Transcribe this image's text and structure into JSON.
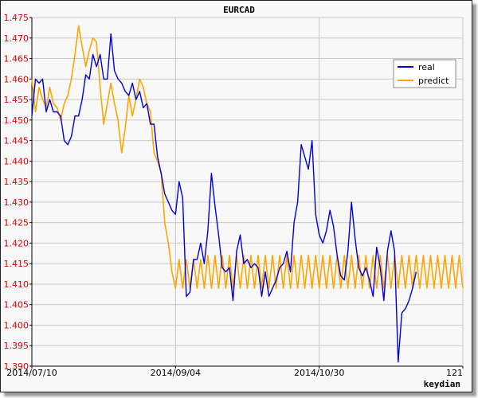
{
  "chart_data": {
    "type": "line",
    "title": "EURCAD",
    "credit": "keydian",
    "ylim": [
      1.39,
      1.475
    ],
    "y_ticks": [
      "1.390",
      "1.395",
      "1.400",
      "1.405",
      "1.410",
      "1.415",
      "1.420",
      "1.425",
      "1.430",
      "1.435",
      "1.440",
      "1.445",
      "1.450",
      "1.455",
      "1.460",
      "1.465",
      "1.470",
      "1.475"
    ],
    "x_ticks": [
      {
        "index": 0,
        "label": "2014/07/10"
      },
      {
        "index": 40,
        "label": "2014/09/04"
      },
      {
        "index": 80,
        "label": "2014/10/30"
      },
      {
        "index": 120,
        "label": "121"
      }
    ],
    "xlim": [
      0,
      120
    ],
    "grid": true,
    "legend_position": "top-right",
    "series": [
      {
        "name": "real",
        "color": "#0000dd",
        "values": [
          1.451,
          1.46,
          1.459,
          1.46,
          1.452,
          1.455,
          1.452,
          1.452,
          1.451,
          1.445,
          1.444,
          1.446,
          1.451,
          1.451,
          1.455,
          1.461,
          1.46,
          1.466,
          1.463,
          1.466,
          1.46,
          1.46,
          1.471,
          1.462,
          1.46,
          1.459,
          1.457,
          1.456,
          1.459,
          1.455,
          1.457,
          1.453,
          1.454,
          1.449,
          1.449,
          1.441,
          1.437,
          1.432,
          1.43,
          1.428,
          1.427,
          1.435,
          1.431,
          1.407,
          1.408,
          1.416,
          1.416,
          1.42,
          1.415,
          1.423,
          1.437,
          1.429,
          1.422,
          1.414,
          1.413,
          1.414,
          1.406,
          1.418,
          1.422,
          1.415,
          1.416,
          1.414,
          1.415,
          1.414,
          1.407,
          1.413,
          1.407,
          1.409,
          1.411,
          1.414,
          1.415,
          1.418,
          1.413,
          1.425,
          1.43,
          1.444,
          1.441,
          1.438,
          1.445,
          1.427,
          1.422,
          1.42,
          1.423,
          1.428,
          1.424,
          1.417,
          1.412,
          1.411,
          1.418,
          1.43,
          1.421,
          1.414,
          1.412,
          1.414,
          1.411,
          1.407,
          1.419,
          1.414,
          1.406,
          1.418,
          1.423,
          1.418,
          1.391,
          1.403,
          1.404,
          1.406,
          1.409,
          1.413
        ]
      },
      {
        "name": "predict",
        "color": "#ffa500",
        "values": [
          1.46,
          1.452,
          1.458,
          1.455,
          1.453,
          1.458,
          1.454,
          1.453,
          1.45,
          1.454,
          1.456,
          1.46,
          1.466,
          1.473,
          1.468,
          1.463,
          1.467,
          1.47,
          1.469,
          1.458,
          1.449,
          1.454,
          1.459,
          1.454,
          1.45,
          1.442,
          1.448,
          1.456,
          1.451,
          1.455,
          1.46,
          1.458,
          1.454,
          1.452,
          1.442,
          1.44,
          1.437,
          1.425,
          1.42,
          1.413,
          1.409,
          1.416,
          1.409,
          1.416,
          1.409,
          1.416,
          1.409,
          1.416,
          1.409,
          1.417,
          1.409,
          1.417,
          1.409,
          1.417,
          1.409,
          1.417,
          1.409,
          1.417,
          1.409,
          1.417,
          1.409,
          1.417,
          1.409,
          1.417,
          1.409,
          1.417,
          1.409,
          1.417,
          1.409,
          1.417,
          1.409,
          1.417,
          1.409,
          1.417,
          1.409,
          1.417,
          1.409,
          1.417,
          1.409,
          1.417,
          1.409,
          1.417,
          1.409,
          1.417,
          1.409,
          1.417,
          1.409,
          1.417,
          1.409,
          1.417,
          1.409,
          1.417,
          1.409,
          1.417,
          1.409,
          1.417,
          1.409,
          1.417,
          1.409,
          1.417,
          1.409,
          1.417,
          1.409,
          1.417,
          1.409,
          1.417,
          1.409,
          1.417,
          1.409,
          1.417,
          1.409,
          1.417,
          1.409,
          1.417,
          1.409,
          1.417,
          1.409,
          1.417,
          1.409,
          1.417,
          1.409
        ]
      }
    ],
    "colors": {
      "grid": "#c8c8c8",
      "axis": "#000000",
      "ytick_text": "#e00000"
    }
  }
}
